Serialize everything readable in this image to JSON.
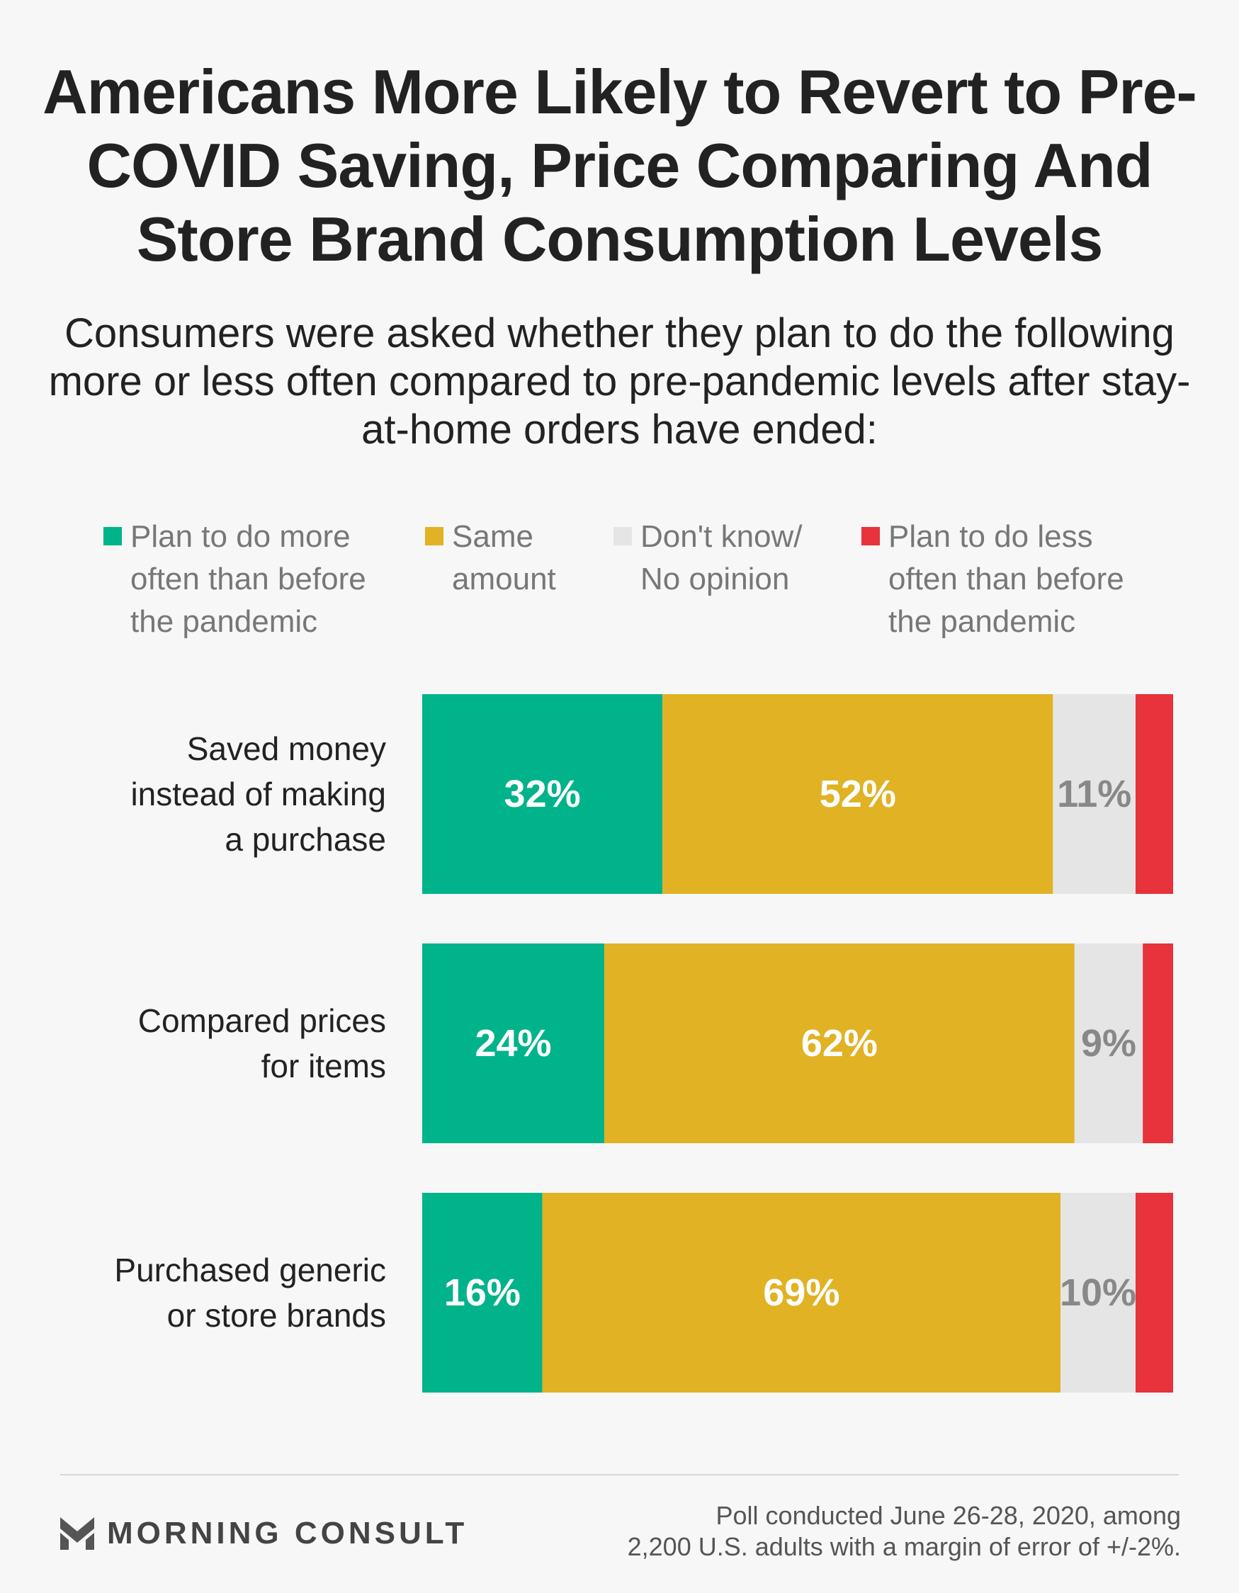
{
  "header": {
    "title": "Americans More Likely to Revert to Pre-COVID Saving, Price Comparing And Store Brand Consumption Levels",
    "subtitle": "Consumers were asked whether they plan to do the following more or less often compared to pre-pandemic levels after stay-at-home orders have ended:"
  },
  "legend": [
    {
      "label": "Plan to do more\noften than before\nthe pandemic",
      "color": "#00b38a"
    },
    {
      "label": "Same\namount",
      "color": "#e0b224"
    },
    {
      "label": "Don't know/\nNo opinion",
      "color": "#e5e5e5"
    },
    {
      "label": "Plan to do less\noften than before\nthe pandemic",
      "color": "#e8323c"
    }
  ],
  "chart_data": {
    "type": "bar",
    "orientation": "horizontal",
    "stacked": true,
    "categories": [
      "Saved money instead of making a purchase",
      "Compared prices for items",
      "Purchased generic or store brands"
    ],
    "category_lines": [
      [
        "Saved money",
        "instead of making",
        "a purchase"
      ],
      [
        "Compared prices",
        "for items"
      ],
      [
        "Purchased generic",
        "or store brands"
      ]
    ],
    "series": [
      {
        "name": "Plan to do more often than before the pandemic",
        "color": "#00b38a",
        "label_color": "#ffffff",
        "values": [
          32,
          24,
          16
        ],
        "labels": [
          "32%",
          "24%",
          "16%"
        ]
      },
      {
        "name": "Same amount",
        "color": "#e0b224",
        "label_color": "#ffffff",
        "values": [
          52,
          62,
          69
        ],
        "labels": [
          "52%",
          "62%",
          "69%"
        ]
      },
      {
        "name": "Don't know/ No opinion",
        "color": "#e5e5e5",
        "label_color": "#888888",
        "values": [
          11,
          9,
          10
        ],
        "labels": [
          "11%",
          "9%",
          "10%"
        ]
      },
      {
        "name": "Plan to do less often than before the pandemic",
        "color": "#e8323c",
        "label_color": "#ffffff",
        "values": [
          5,
          4,
          5
        ],
        "labels": [
          "",
          "",
          ""
        ]
      }
    ],
    "xlim": [
      0,
      100
    ]
  },
  "footer": {
    "brand": "MORNING CONSULT",
    "note_line1": "Poll conducted June 26-28, 2020, among",
    "note_line2": "2,200 U.S. adults with a margin of error of +/-2%."
  }
}
